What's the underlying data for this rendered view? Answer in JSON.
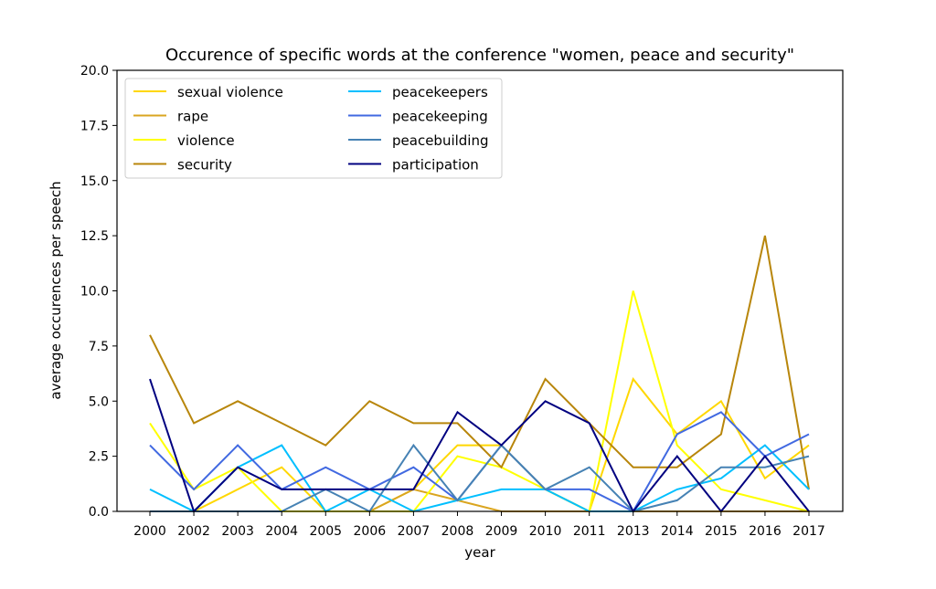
{
  "chart_data": {
    "type": "line",
    "title": "Occurence of specific words at the conference \"women, peace and security\"",
    "xlabel": "year",
    "ylabel": "average occurences per speech",
    "categories": [
      "2000",
      "2002",
      "2003",
      "2004",
      "2005",
      "2006",
      "2007",
      "2008",
      "2009",
      "2010",
      "2011",
      "2013",
      "2014",
      "2015",
      "2016",
      "2017"
    ],
    "ylim": [
      0,
      20
    ],
    "yticks": [
      "0.0",
      "2.5",
      "5.0",
      "7.5",
      "10.0",
      "12.5",
      "15.0",
      "17.5",
      "20.0"
    ],
    "grid": false,
    "legend_position": "top-left",
    "series": [
      {
        "name": "sexual violence",
        "color": "#FFD700",
        "values": [
          0,
          0,
          1,
          2,
          0,
          0,
          1,
          3,
          3,
          1,
          0,
          6,
          3.5,
          5,
          1.5,
          3
        ]
      },
      {
        "name": "rape",
        "color": "#DAA520",
        "values": [
          0,
          0,
          0,
          0,
          0,
          0,
          1,
          0.5,
          0,
          0,
          0,
          0,
          0,
          0,
          0,
          0
        ]
      },
      {
        "name": "violence",
        "color": "#FFFF00",
        "values": [
          4,
          1,
          2,
          0,
          0,
          0,
          0,
          2.5,
          2,
          1,
          0,
          10,
          3,
          1,
          0.5,
          0
        ]
      },
      {
        "name": "security",
        "color": "#B8860B",
        "values": [
          8,
          4,
          5,
          4,
          3,
          5,
          4,
          4,
          2,
          6,
          4,
          2,
          2,
          3.5,
          12.5,
          1
        ]
      },
      {
        "name": "peacekeepers",
        "color": "#00BFFF",
        "values": [
          1,
          0,
          2,
          3,
          0,
          1,
          0,
          0.5,
          1,
          1,
          0,
          0,
          1,
          1.5,
          3,
          1
        ]
      },
      {
        "name": "peacekeeping",
        "color": "#4169E1",
        "values": [
          3,
          1,
          3,
          1,
          2,
          1,
          2,
          0.5,
          3,
          1,
          1,
          0,
          3.5,
          4.5,
          2.5,
          3.5
        ]
      },
      {
        "name": "peacebuilding",
        "color": "#4682B4",
        "values": [
          0,
          0,
          0,
          0,
          1,
          0,
          3,
          0.5,
          3,
          1,
          2,
          0,
          0.5,
          2,
          2,
          2.5
        ]
      },
      {
        "name": "participation",
        "color": "#000080",
        "values": [
          6,
          0,
          2,
          1,
          1,
          1,
          1,
          4.5,
          3,
          5,
          4,
          0,
          2.5,
          0,
          2.5,
          0
        ]
      }
    ]
  }
}
